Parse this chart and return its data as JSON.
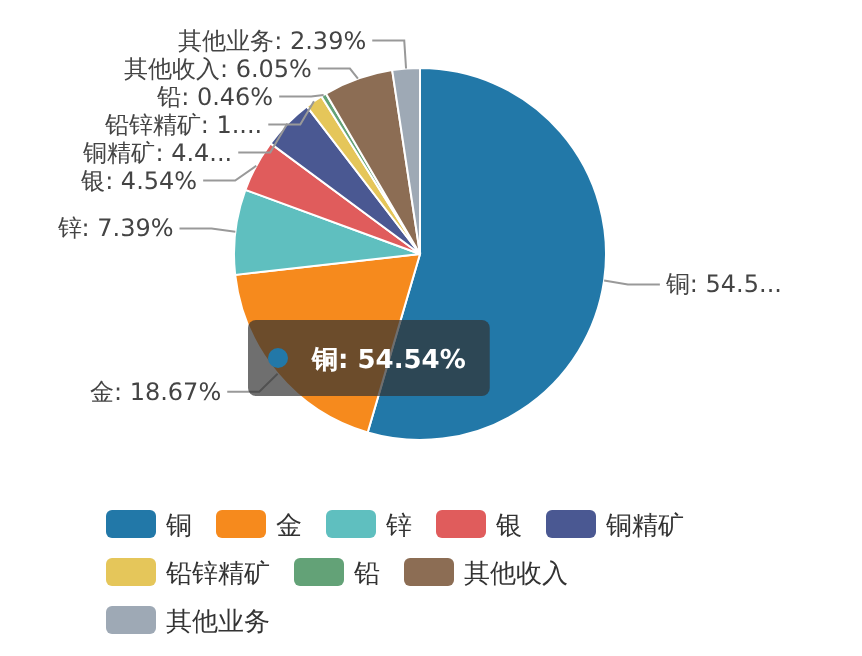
{
  "chart_data": {
    "type": "pie",
    "categories": [
      "铜",
      "金",
      "锌",
      "银",
      "铜精矿",
      "铅锌精矿",
      "铅",
      "其他收入",
      "其他业务"
    ],
    "values": [
      54.54,
      18.67,
      7.39,
      4.54,
      4.45,
      1.51,
      0.46,
      6.05,
      2.39
    ],
    "colors": [
      "#2278a8",
      "#f68a1d",
      "#5fbfbf",
      "#e05c5c",
      "#4a5892",
      "#e5c65a",
      "#63a277",
      "#8c6d54",
      "#9ea9b5"
    ],
    "value_labels": [
      "铜: 54.5...",
      "金: 18.67%",
      "锌: 7.39%",
      "银: 4.54%",
      "铜精矿: 4.4...",
      "铅锌精矿: 1....",
      "铅: 0.46%",
      "其他收入: 6.05%",
      "其他业务: 2.39%"
    ],
    "annotations": [
      "铜: 54.54%"
    ],
    "legend": "bottom"
  }
}
